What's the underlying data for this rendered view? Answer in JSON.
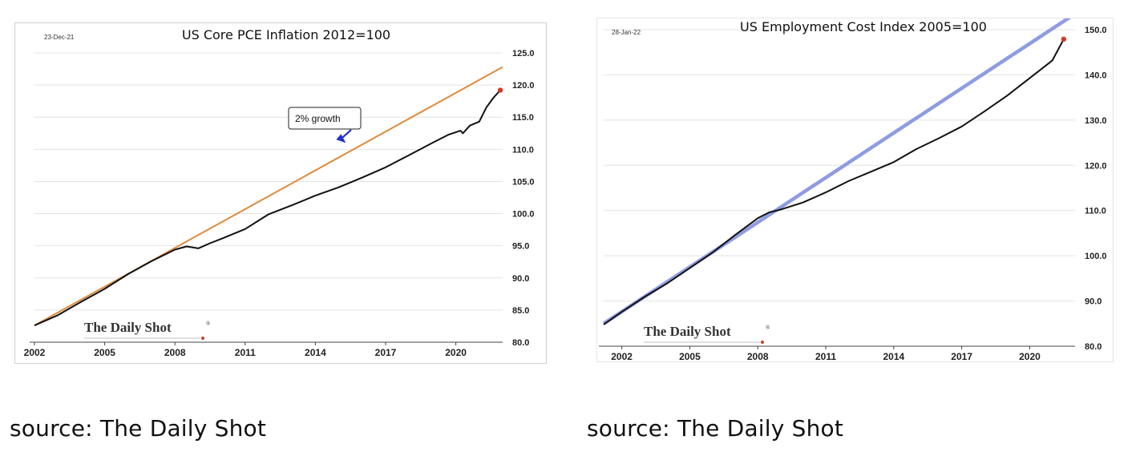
{
  "chart_data": [
    {
      "type": "line",
      "title": "US Core PCE Inflation 2012=100",
      "date_label": "23-Dec-21",
      "xlim": [
        2002,
        2022
      ],
      "ylim": [
        80,
        125
      ],
      "x_ticks": [
        2002,
        2005,
        2008,
        2011,
        2014,
        2017,
        2020
      ],
      "y_ticks": [
        80,
        85,
        90,
        95,
        100,
        105,
        110,
        115,
        120,
        125
      ],
      "y_tick_labels": [
        "80.0",
        "85.0",
        "90.0",
        "95.0",
        "100.0",
        "105.0",
        "110.0",
        "115.0",
        "120.0",
        "125.0"
      ],
      "y_axis_side": "right",
      "grid": "horizontal",
      "annotation": {
        "text": "2% growth",
        "x": 2015.3,
        "y": 111.0
      },
      "logo": "The Daily Shot",
      "series": [
        {
          "color": "#E08A3C",
          "x": [
            2002,
            2022.0
          ],
          "values": [
            82.6,
            122.8
          ]
        },
        {
          "color": "#111111",
          "endpoint_color": "#D23A2A",
          "x": [
            2002.0,
            2003.0,
            2004.0,
            2005.0,
            2006.0,
            2007.0,
            2008.0,
            2008.5,
            2009.0,
            2009.5,
            2010.0,
            2011.0,
            2012.0,
            2013.0,
            2014.0,
            2015.0,
            2016.0,
            2017.0,
            2018.0,
            2019.0,
            2019.7,
            2020.2,
            2020.3,
            2020.6,
            2021.0,
            2021.3,
            2021.6,
            2021.9
          ],
          "values": [
            82.6,
            84.2,
            86.3,
            88.3,
            90.6,
            92.6,
            94.4,
            94.9,
            94.6,
            95.4,
            96.1,
            97.6,
            99.9,
            101.3,
            102.8,
            104.1,
            105.6,
            107.2,
            109.1,
            111.0,
            112.3,
            112.9,
            112.5,
            113.7,
            114.3,
            116.5,
            118.0,
            119.2
          ]
        }
      ],
      "source": "source: The Daily Shot"
    },
    {
      "type": "line",
      "title": "US Employment Cost Index 2005=100",
      "date_label": "28-Jan-22",
      "xlim": [
        2001.2,
        2022.0
      ],
      "ylim": [
        80,
        150
      ],
      "x_ticks": [
        2002,
        2005,
        2008,
        2011,
        2014,
        2017,
        2020
      ],
      "y_ticks": [
        80,
        90,
        100,
        110,
        120,
        130,
        140,
        150
      ],
      "y_tick_labels": [
        "80.0",
        "90.0",
        "100.0",
        "110.0",
        "120.0",
        "130.0",
        "140.0",
        "150.0"
      ],
      "y_axis_side": "right",
      "grid": "horizontal",
      "logo": "The Daily Shot",
      "series": [
        {
          "color": "#8E9CE3",
          "x": [
            2001.2,
            2022.0
          ],
          "values": [
            85.0,
            153.5
          ]
        },
        {
          "color": "#111111",
          "endpoint_color": "#D23A2A",
          "x": [
            2001.2,
            2002.0,
            2003.0,
            2004.0,
            2005.0,
            2006.0,
            2007.0,
            2008.0,
            2008.5,
            2009.0,
            2010.0,
            2011.0,
            2012.0,
            2013.0,
            2014.0,
            2015.0,
            2016.0,
            2017.0,
            2018.0,
            2019.0,
            2020.0,
            2021.0,
            2021.5
          ],
          "values": [
            84.8,
            87.6,
            90.9,
            93.9,
            97.3,
            100.7,
            104.6,
            108.3,
            109.6,
            110.2,
            111.8,
            114.0,
            116.5,
            118.6,
            120.7,
            123.6,
            126.0,
            128.6,
            131.9,
            135.4,
            139.3,
            143.2,
            147.9
          ]
        }
      ],
      "source": "source: The Daily Shot"
    }
  ]
}
